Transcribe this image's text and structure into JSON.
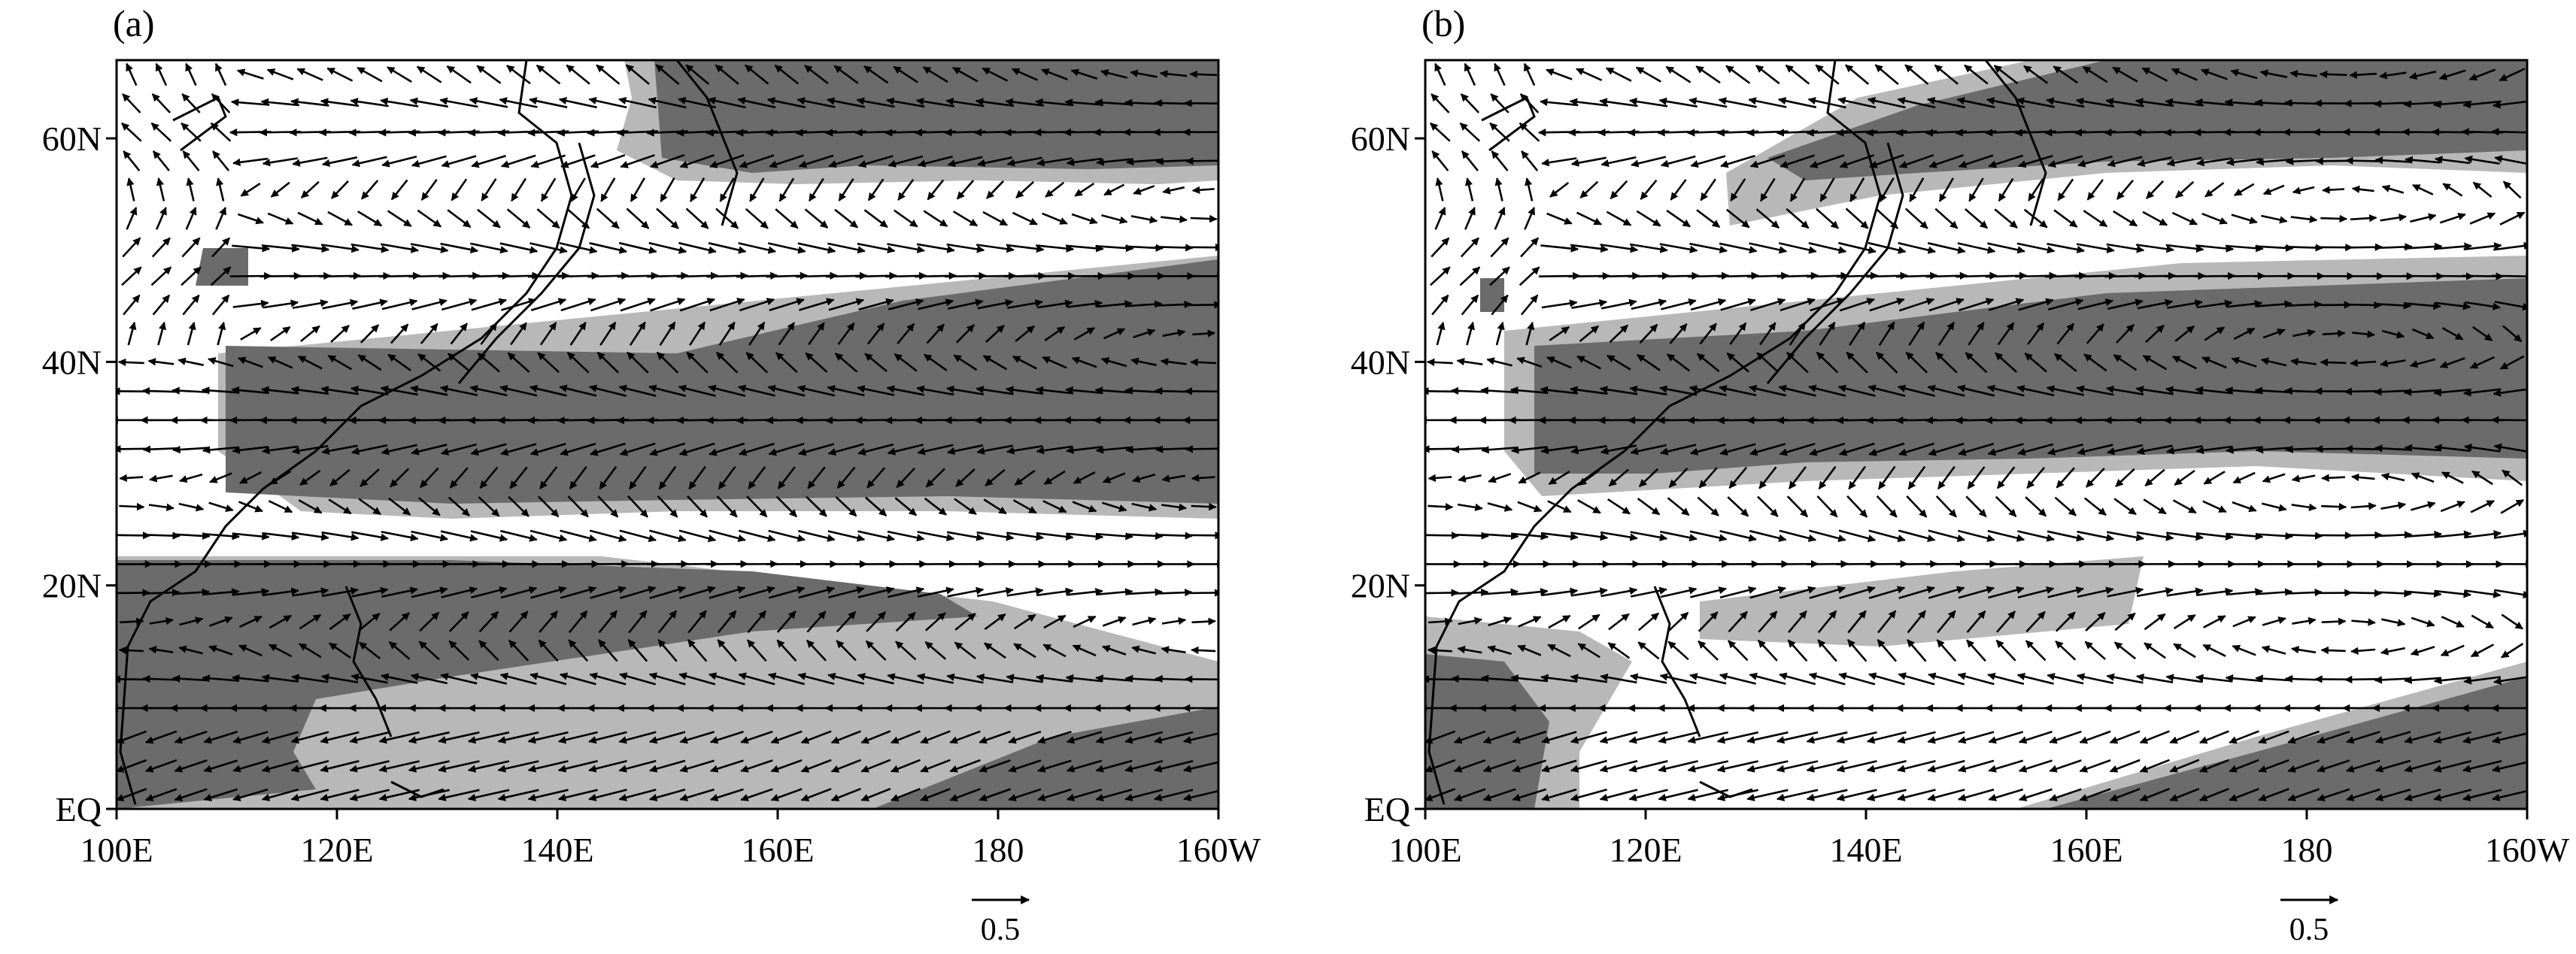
{
  "figure": {
    "colors": {
      "dark_shade": "#6b6b6b",
      "light_shade": "#b8b8b8",
      "background": "#ffffff",
      "vector": "#000000",
      "coastline": "#000000"
    }
  },
  "panels": [
    {
      "label": "(a)",
      "xaxis": {
        "ticks": [
          "100E",
          "120E",
          "140E",
          "160E",
          "180",
          "160W"
        ]
      },
      "yaxis": {
        "ticks": [
          "EQ",
          "20N",
          "40N",
          "60N"
        ]
      },
      "reference_vector": {
        "value": "0.5"
      }
    },
    {
      "label": "(b)",
      "xaxis": {
        "ticks": [
          "100E",
          "120E",
          "140E",
          "160E",
          "180",
          "160W"
        ]
      },
      "yaxis": {
        "ticks": [
          "EQ",
          "20N",
          "40N",
          "60N"
        ]
      },
      "reference_vector": {
        "value": "0.5"
      }
    }
  ],
  "map_data": {
    "lon_range": [
      100,
      200
    ],
    "lat_range": [
      0,
      60
    ],
    "x_tick_lons": [
      100,
      120,
      140,
      160,
      180,
      200
    ],
    "y_tick_lats": [
      0,
      20,
      40,
      60
    ],
    "field": "wind vectors with shaded significance",
    "shading_levels": [
      "dark",
      "light"
    ]
  }
}
